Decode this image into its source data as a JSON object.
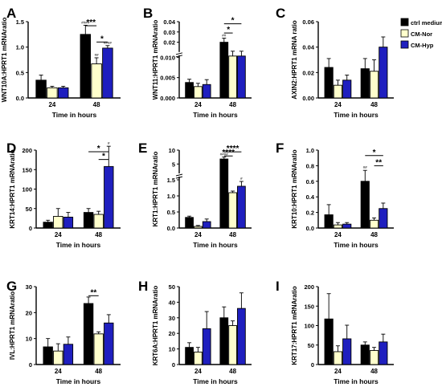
{
  "figure": {
    "legend": [
      {
        "label": "ctrl medium",
        "color": "#000000"
      },
      {
        "label": "CM-Nor",
        "color": "#ffffcc"
      },
      {
        "label": "CM-Hyp",
        "color": "#1f1fbf"
      }
    ],
    "xlabel": "Time in hours",
    "colors": {
      "ctrl": "#000000",
      "nor": "#ffffcc",
      "hyp": "#1f1fbf",
      "axis": "#000000"
    }
  },
  "chart_data": [
    {
      "panel": "A",
      "type": "bar",
      "ylabel": "WNT10A:HPRT1 mRNAratio",
      "categories": [
        "24",
        "48"
      ],
      "yticks": [
        "0.0",
        "0.5",
        "1.0",
        "1.5"
      ],
      "ylim": [
        0,
        1.5
      ],
      "series": [
        {
          "values": [
            0.35,
            1.25
          ],
          "err": [
            0.1,
            0.18
          ]
        },
        {
          "values": [
            0.2,
            0.67
          ],
          "err": [
            0.03,
            0.12
          ]
        },
        {
          "values": [
            0.2,
            0.98
          ],
          "err": [
            0.03,
            0.05
          ]
        }
      ],
      "marks": [
        "####",
        "##",
        "####"
      ],
      "brackets": [
        {
          "label": "***"
        },
        {
          "label": "*"
        }
      ]
    },
    {
      "panel": "B",
      "type": "bar",
      "ylabel": "WNT11:HPRT1 mRNAratio",
      "categories": [
        "24",
        "48"
      ],
      "yticks": [
        "0.000",
        "0.005",
        "0.010",
        "0.02",
        "0.03",
        "0.04"
      ],
      "ylim": [
        0,
        0.04
      ],
      "axis_break": true,
      "series": [
        {
          "values": [
            0.0038,
            0.02
          ],
          "err": [
            0.0008,
            0.004
          ]
        },
        {
          "values": [
            0.0028,
            0.0103
          ],
          "err": [
            0.0008,
            0.001
          ]
        },
        {
          "values": [
            0.0033,
            0.0103
          ],
          "err": [
            0.0012,
            0.001
          ]
        }
      ],
      "marks": [
        "##"
      ],
      "brackets": [
        {
          "label": "*"
        },
        {
          "label": "*"
        }
      ]
    },
    {
      "panel": "C",
      "type": "bar",
      "ylabel": "AXIN2:HPRT1 mRNA ratio",
      "categories": [
        "24",
        "48"
      ],
      "yticks": [
        "0.00",
        "0.02",
        "0.04",
        "0.06"
      ],
      "ylim": [
        0,
        0.06
      ],
      "series": [
        {
          "values": [
            0.024,
            0.023
          ],
          "err": [
            0.007,
            0.008
          ]
        },
        {
          "values": [
            0.01,
            0.021
          ],
          "err": [
            0.004,
            0.009
          ]
        },
        {
          "values": [
            0.014,
            0.04
          ],
          "err": [
            0.004,
            0.008
          ]
        }
      ]
    },
    {
      "panel": "D",
      "type": "bar",
      "ylabel": "KRT14:HPRT1 mRNAratio",
      "categories": [
        "24",
        "48"
      ],
      "yticks": [
        "0",
        "50",
        "100",
        "150",
        "200"
      ],
      "ylim": [
        0,
        200
      ],
      "series": [
        {
          "values": [
            15,
            40
          ],
          "err": [
            5,
            10
          ]
        },
        {
          "values": [
            30,
            35
          ],
          "err": [
            20,
            8
          ]
        },
        {
          "values": [
            28,
            158
          ],
          "err": [
            12,
            52
          ]
        }
      ],
      "marks": [
        "#"
      ],
      "brackets": [
        {
          "label": "*"
        },
        {
          "label": "*"
        }
      ]
    },
    {
      "panel": "E",
      "type": "bar",
      "ylabel": "KRT1:HPRT1 mRNAratio",
      "categories": [
        "24",
        "48"
      ],
      "yticks": [
        "0.0",
        "0.5",
        "1.0",
        "1.5",
        "5",
        "10"
      ],
      "ylim": [
        0,
        10
      ],
      "axis_break": true,
      "series": [
        {
          "values": [
            0.33,
            6.8
          ],
          "err": [
            0.04,
            0.7
          ]
        },
        {
          "values": [
            0.05,
            1.1
          ],
          "err": [
            0.03,
            0.05
          ]
        },
        {
          "values": [
            0.2,
            1.3
          ],
          "err": [
            0.08,
            0.15
          ]
        }
      ],
      "marks": [
        "####",
        "#"
      ],
      "brackets": [
        {
          "label": "****"
        },
        {
          "label": "****"
        }
      ]
    },
    {
      "panel": "F",
      "type": "bar",
      "ylabel": "KRT10:HPRT1 mRNAratio",
      "categories": [
        "24",
        "48"
      ],
      "yticks": [
        "0.0",
        "0.2",
        "0.4",
        "0.6",
        "0.8",
        "1.0"
      ],
      "ylim": [
        0,
        1.0
      ],
      "series": [
        {
          "values": [
            0.17,
            0.6
          ],
          "err": [
            0.13,
            0.14
          ]
        },
        {
          "values": [
            0.04,
            0.1
          ],
          "err": [
            0.03,
            0.03
          ]
        },
        {
          "values": [
            0.05,
            0.25
          ],
          "err": [
            0.02,
            0.07
          ]
        }
      ],
      "marks": [
        "##"
      ],
      "brackets": [
        {
          "label": "*"
        },
        {
          "label": "**"
        }
      ]
    },
    {
      "panel": "G",
      "type": "bar",
      "ylabel": "IVL:HPRT1 mRNAratio",
      "categories": [
        "24",
        "48"
      ],
      "yticks": [
        "0",
        "10",
        "20",
        "30"
      ],
      "ylim": [
        0,
        30
      ],
      "series": [
        {
          "values": [
            6.8,
            23.5
          ],
          "err": [
            3.2,
            2.5
          ]
        },
        {
          "values": [
            5.2,
            11.8
          ],
          "err": [
            2.8,
            0.8
          ]
        },
        {
          "values": [
            7.8,
            16
          ],
          "err": [
            2.8,
            3.2
          ]
        }
      ],
      "brackets": [
        {
          "label": "**"
        }
      ]
    },
    {
      "panel": "H",
      "type": "bar",
      "ylabel": "KRT6A:HPRT1 mRNAratio",
      "categories": [
        "24",
        "48"
      ],
      "yticks": [
        "0",
        "10",
        "20",
        "30",
        "40",
        "50"
      ],
      "ylim": [
        0,
        50
      ],
      "series": [
        {
          "values": [
            11,
            30
          ],
          "err": [
            3,
            7
          ]
        },
        {
          "values": [
            8,
            25
          ],
          "err": [
            3,
            3
          ]
        },
        {
          "values": [
            23,
            36
          ],
          "err": [
            11,
            10
          ]
        }
      ]
    },
    {
      "panel": "I",
      "type": "bar",
      "ylabel": "KRT17:HPRT1 mRNAratio",
      "categories": [
        "24",
        "48"
      ],
      "yticks": [
        "0",
        "50",
        "100",
        "150",
        "200"
      ],
      "ylim": [
        0,
        200
      ],
      "series": [
        {
          "values": [
            117,
            50
          ],
          "err": [
            65,
            8
          ]
        },
        {
          "values": [
            33,
            36
          ],
          "err": [
            15,
            8
          ]
        },
        {
          "values": [
            66,
            58
          ],
          "err": [
            35,
            20
          ]
        }
      ]
    }
  ]
}
